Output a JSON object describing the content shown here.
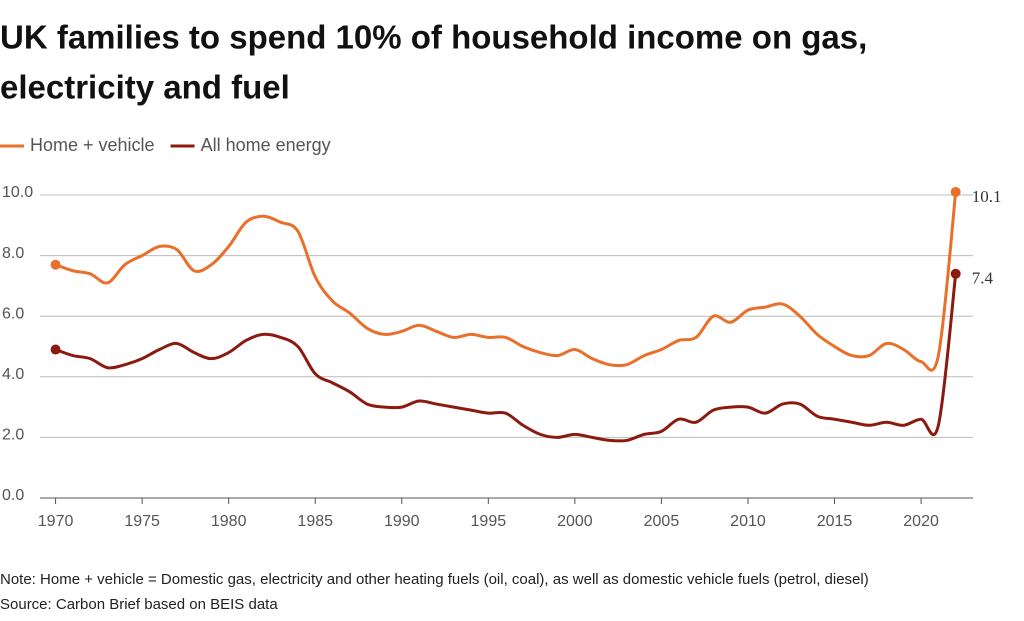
{
  "chart_data": {
    "type": "line",
    "title": "UK families to spend 10% of household income on gas,",
    "subtitle": "electricity and fuel",
    "note": "Note: Home + vehicle = Domestic gas, electricity and other heating fuels (oil, coal), as well as domestic vehicle fuels (petrol, diesel)",
    "source": "Source: Carbon Brief based on BEIS data",
    "x": [
      1970,
      1971,
      1972,
      1973,
      1974,
      1975,
      1976,
      1977,
      1978,
      1979,
      1980,
      1981,
      1982,
      1983,
      1984,
      1985,
      1986,
      1987,
      1988,
      1989,
      1990,
      1991,
      1992,
      1993,
      1994,
      1995,
      1996,
      1997,
      1998,
      1999,
      2000,
      2001,
      2002,
      2003,
      2004,
      2005,
      2006,
      2007,
      2008,
      2009,
      2010,
      2011,
      2012,
      2013,
      2014,
      2015,
      2016,
      2017,
      2018,
      2019,
      2020,
      2021,
      2022
    ],
    "series": [
      {
        "name": "Home + vehicle",
        "color": "#e8702a",
        "values": [
          7.7,
          7.5,
          7.4,
          7.1,
          7.7,
          8.0,
          8.3,
          8.2,
          7.5,
          7.7,
          8.3,
          9.1,
          9.3,
          9.1,
          8.8,
          7.3,
          6.5,
          6.1,
          5.6,
          5.4,
          5.5,
          5.7,
          5.5,
          5.3,
          5.4,
          5.3,
          5.3,
          5.0,
          4.8,
          4.7,
          4.9,
          4.6,
          4.4,
          4.4,
          4.7,
          4.9,
          5.2,
          5.3,
          6.0,
          5.8,
          6.2,
          6.3,
          6.4,
          6.0,
          5.4,
          5.0,
          4.7,
          4.7,
          5.1,
          4.9,
          4.5,
          4.7,
          10.1
        ]
      },
      {
        "name": "All home energy",
        "color": "#8b1a10",
        "values": [
          4.9,
          4.7,
          4.6,
          4.3,
          4.4,
          4.6,
          4.9,
          5.1,
          4.8,
          4.6,
          4.8,
          5.2,
          5.4,
          5.3,
          5.0,
          4.1,
          3.8,
          3.5,
          3.1,
          3.0,
          3.0,
          3.2,
          3.1,
          3.0,
          2.9,
          2.8,
          2.8,
          2.4,
          2.1,
          2.0,
          2.1,
          2.0,
          1.9,
          1.9,
          2.1,
          2.2,
          2.6,
          2.5,
          2.9,
          3.0,
          3.0,
          2.8,
          3.1,
          3.1,
          2.7,
          2.6,
          2.5,
          2.4,
          2.5,
          2.4,
          2.6,
          2.4,
          7.4
        ]
      }
    ],
    "xlim": [
      1969.1,
      2023.0
    ],
    "xticks": [
      1970,
      1975,
      1980,
      1985,
      1990,
      1995,
      2000,
      2005,
      2010,
      2015,
      2020
    ],
    "ylim": [
      0,
      10
    ],
    "yticks": [
      {
        "value": 0,
        "label": "0.0"
      },
      {
        "value": 2,
        "label": "2.0"
      },
      {
        "value": 4,
        "label": "4.0"
      },
      {
        "value": 6,
        "label": "6.0"
      },
      {
        "value": 8,
        "label": "8.0"
      },
      {
        "value": 10,
        "label": "10.0"
      }
    ],
    "grid": true,
    "legend": "top-left"
  }
}
